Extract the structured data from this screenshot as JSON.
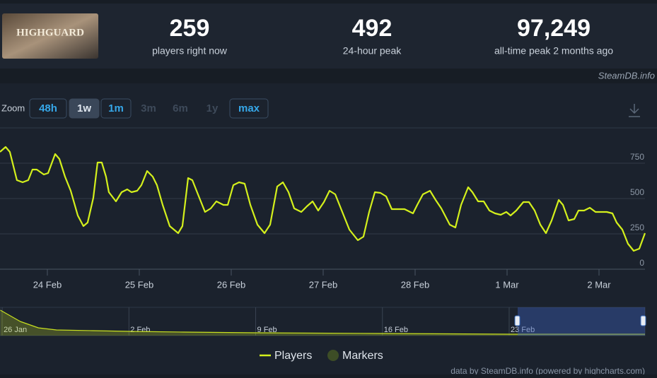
{
  "header": {
    "logo_text": "HIGHGUARD",
    "stats": [
      {
        "value": "259",
        "label": "players right now"
      },
      {
        "value": "492",
        "label": "24-hour peak"
      },
      {
        "value": "97,249",
        "label": "all-time peak 2 months ago"
      }
    ],
    "source": "SteamDB.info"
  },
  "zoom": {
    "label": "Zoom",
    "buttons": [
      "48h",
      "1w",
      "1m",
      "3m",
      "6m",
      "1y",
      "max"
    ]
  },
  "chart_data": [
    {
      "type": "line",
      "grid": true,
      "xlim": [
        54.485,
        61.5
      ],
      "xticks": [
        {
          "value": 55,
          "label": "24 Feb"
        },
        {
          "value": 56,
          "label": "25 Feb"
        },
        {
          "value": 57,
          "label": "26 Feb"
        },
        {
          "value": 58,
          "label": "27 Feb"
        },
        {
          "value": 59,
          "label": "28 Feb"
        },
        {
          "value": 60,
          "label": "1 Mar"
        },
        {
          "value": 61,
          "label": "2 Mar"
        }
      ],
      "ylim": [
        0,
        1000
      ],
      "yticks": [
        0,
        250,
        500,
        750
      ],
      "series": [
        {
          "name": "Players",
          "color": "#d4f01c",
          "x": [
            54.485,
            54.546,
            54.592,
            54.669,
            54.731,
            54.792,
            54.838,
            54.885,
            54.962,
            55.008,
            55.085,
            55.131,
            55.192,
            55.254,
            55.331,
            55.392,
            55.438,
            55.5,
            55.546,
            55.592,
            55.638,
            55.669,
            55.746,
            55.808,
            55.869,
            55.915,
            55.977,
            56.023,
            56.085,
            56.146,
            56.192,
            56.254,
            56.331,
            56.423,
            56.469,
            56.531,
            56.577,
            56.638,
            56.715,
            56.777,
            56.838,
            56.915,
            56.962,
            57.023,
            57.085,
            57.146,
            57.208,
            57.285,
            57.362,
            57.423,
            57.5,
            57.562,
            57.623,
            57.685,
            57.762,
            57.823,
            57.885,
            57.946,
            58.008,
            58.069,
            58.131,
            58.208,
            58.285,
            58.377,
            58.438,
            58.5,
            58.562,
            58.623,
            58.685,
            58.746,
            58.838,
            58.885,
            58.977,
            59.023,
            59.085,
            59.162,
            59.223,
            59.285,
            59.377,
            59.438,
            59.5,
            59.577,
            59.623,
            59.685,
            59.746,
            59.808,
            59.869,
            59.931,
            59.992,
            60.038,
            60.1,
            60.177,
            60.238,
            60.3,
            60.362,
            60.423,
            60.485,
            60.562,
            60.608,
            60.669,
            60.731,
            60.777,
            60.838,
            60.9,
            60.962,
            61.023,
            61.085,
            61.146,
            61.192,
            61.254,
            61.315,
            61.377,
            61.438,
            61.5
          ],
          "values": [
            830,
            865,
            830,
            630,
            615,
            630,
            705,
            705,
            670,
            680,
            815,
            780,
            655,
            555,
            380,
            305,
            330,
            505,
            755,
            755,
            655,
            545,
            480,
            545,
            565,
            545,
            555,
            595,
            695,
            655,
            595,
            455,
            305,
            255,
            305,
            645,
            630,
            530,
            405,
            430,
            480,
            455,
            455,
            595,
            615,
            605,
            455,
            315,
            255,
            315,
            585,
            615,
            545,
            430,
            405,
            445,
            480,
            415,
            475,
            555,
            530,
            405,
            280,
            205,
            230,
            405,
            545,
            540,
            515,
            425,
            425,
            425,
            395,
            455,
            530,
            555,
            490,
            430,
            315,
            295,
            455,
            580,
            545,
            480,
            480,
            415,
            395,
            385,
            405,
            380,
            415,
            475,
            475,
            415,
            315,
            255,
            345,
            490,
            455,
            345,
            355,
            415,
            415,
            435,
            405,
            405,
            405,
            395,
            330,
            280,
            180,
            130,
            145,
            255
          ]
        }
      ],
      "markers": {
        "name": "Markers",
        "color": "#3d4d26"
      }
    },
    {
      "type": "area",
      "xlim": [
        25.88,
        61.5
      ],
      "ylim": [
        0,
        10000
      ],
      "xticks": [
        {
          "value": 26,
          "label": "26 Jan"
        },
        {
          "value": 33,
          "label": "2 Feb"
        },
        {
          "value": 40,
          "label": "9 Feb"
        },
        {
          "value": 47,
          "label": "16 Feb"
        },
        {
          "value": 54,
          "label": "23 Feb"
        }
      ],
      "series": [
        {
          "color": "#c8e020",
          "x": [
            25.9,
            27,
            28,
            29,
            31,
            33,
            36,
            40,
            47,
            54,
            61.5
          ],
          "values": [
            9000,
            5000,
            2750,
            2000,
            1750,
            1500,
            1250,
            1000,
            750,
            500,
            500
          ]
        }
      ]
    }
  ],
  "credit": "data by SteamDB.info (powered by highcharts.com)"
}
